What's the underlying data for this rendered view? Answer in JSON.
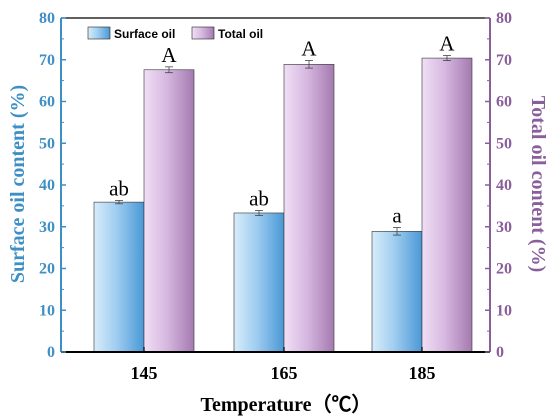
{
  "colors": {
    "left_axis": "#3e8fc6",
    "right_axis": "#8a5e9b",
    "surface_light": "#d8ecfa",
    "surface_dark": "#4a98d6",
    "total_light": "#f0dff5",
    "total_dark": "#a47ab0"
  },
  "chart_data": {
    "type": "bar",
    "categories": [
      "145",
      "165",
      "185"
    ],
    "xlabel": "Temperature（℃）",
    "ylabel_left": "Surface oil content (%)",
    "ylabel_right": "Total oil content (%)",
    "ylim_left": [
      0,
      80
    ],
    "ylim_right": [
      0,
      80
    ],
    "yticks": [
      "0",
      "10",
      "20",
      "30",
      "40",
      "50",
      "60",
      "70",
      "80"
    ],
    "legend_position": "top-left",
    "grid": false,
    "series": [
      {
        "name": "Surface oil",
        "axis": "left",
        "values": [
          35.9,
          33.3,
          28.9
        ],
        "errors": [
          0.4,
          0.6,
          0.9
        ],
        "labels": [
          "ab",
          "ab",
          "a"
        ]
      },
      {
        "name": "Total oil",
        "axis": "right",
        "values": [
          67.6,
          68.9,
          70.4
        ],
        "errors": [
          0.7,
          0.9,
          0.6
        ],
        "labels": [
          "A",
          "A",
          "A"
        ]
      }
    ]
  }
}
